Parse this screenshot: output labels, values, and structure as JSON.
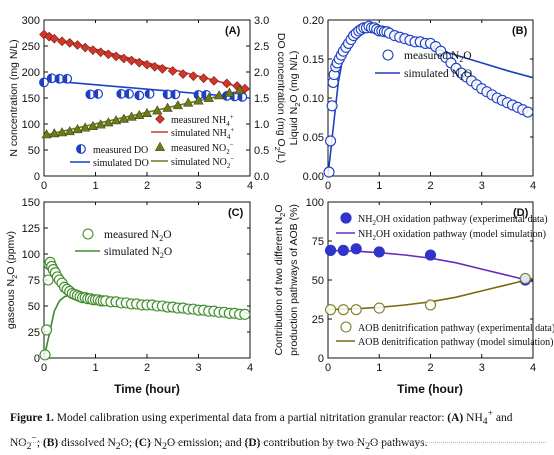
{
  "chart_data": [
    {
      "type": "scatter",
      "panel": "(A)",
      "xlabel": "",
      "ylabel": "N concentration (mg N/L)",
      "y2label": "DO concentration (mg O2/L)",
      "xlim": [
        0,
        4
      ],
      "ylim": [
        0,
        300
      ],
      "y2lim": [
        0,
        3.0
      ],
      "xticks": [
        "0",
        "1",
        "2",
        "3",
        "4"
      ],
      "yticks": [
        "0",
        "50",
        "100",
        "150",
        "200",
        "250",
        "300"
      ],
      "y2ticks": [
        "0.0",
        "0.5",
        "1.0",
        "1.5",
        "2.0",
        "2.5",
        "3.0"
      ],
      "legend_position": "bottom-right",
      "series": [
        {
          "name": "measured NH4+",
          "marker": "diamond",
          "color": "#d2362b",
          "axis": "left",
          "x": [
            0.0,
            0.1,
            0.2,
            0.35,
            0.5,
            0.65,
            0.8,
            0.95,
            1.1,
            1.25,
            1.4,
            1.55,
            1.7,
            1.85,
            2.0,
            2.15,
            2.3,
            2.5,
            2.7,
            2.9,
            3.1,
            3.3,
            3.55,
            3.75,
            3.9
          ],
          "y": [
            272,
            268,
            264,
            259,
            256,
            252,
            247,
            242,
            238,
            234,
            230,
            226,
            222,
            218,
            214,
            210,
            206,
            202,
            196,
            192,
            188,
            183,
            178,
            173,
            168
          ]
        },
        {
          "name": "simulated NH4+",
          "line": true,
          "color": "#d2362b",
          "axis": "left",
          "x": [
            0,
            4
          ],
          "y": [
            270,
            166
          ]
        },
        {
          "name": "measured DO",
          "marker": "half-circle",
          "color": "#1f3fc4",
          "axis": "right",
          "x": [
            0.0,
            0.15,
            0.3,
            0.45,
            0.9,
            1.05,
            1.5,
            1.65,
            1.85,
            2.05,
            2.4,
            2.55,
            3.0,
            3.15,
            3.55,
            3.7,
            3.85
          ],
          "y": [
            1.8,
            1.88,
            1.87,
            1.87,
            1.57,
            1.58,
            1.58,
            1.58,
            1.55,
            1.58,
            1.57,
            1.57,
            1.56,
            1.56,
            1.54,
            1.53,
            1.52
          ]
        },
        {
          "name": "simulated DO",
          "line": true,
          "color": "#1f3fc4",
          "axis": "right",
          "x": [
            0,
            4
          ],
          "y": [
            1.84,
            1.5
          ]
        },
        {
          "name": "measured NO2-",
          "marker": "triangle",
          "color": "#6d7a1c",
          "axis": "left",
          "x": [
            0.05,
            0.2,
            0.35,
            0.5,
            0.65,
            0.8,
            0.95,
            1.1,
            1.25,
            1.4,
            1.55,
            1.7,
            1.85,
            2.0,
            2.2,
            2.4,
            2.6,
            2.8,
            3.0,
            3.2,
            3.4,
            3.6,
            3.8
          ],
          "y": [
            80,
            82,
            84,
            86,
            90,
            93,
            96,
            99,
            103,
            107,
            110,
            114,
            117,
            121,
            126,
            131,
            136,
            141,
            145,
            150,
            155,
            160,
            165
          ]
        },
        {
          "name": "simulated NO2-",
          "line": true,
          "color": "#6d7a1c",
          "axis": "left",
          "x": [
            0,
            4
          ],
          "y": [
            78,
            167
          ]
        }
      ]
    },
    {
      "type": "scatter",
      "panel": "(B)",
      "xlabel": "",
      "ylabel": "Liquid N2O (mg N/L)",
      "xlim": [
        0,
        4
      ],
      "ylim": [
        0,
        0.2
      ],
      "xticks": [
        "0",
        "1",
        "2",
        "3",
        "4"
      ],
      "yticks": [
        "0.00",
        "0.05",
        "0.10",
        "0.15",
        "0.20"
      ],
      "legend_position": "top-right",
      "series": [
        {
          "name": "measured N2O",
          "marker": "open-circle",
          "color": "#1f3fc4",
          "x": [
            0.02,
            0.05,
            0.08,
            0.1,
            0.12,
            0.15,
            0.18,
            0.22,
            0.26,
            0.3,
            0.35,
            0.4,
            0.45,
            0.5,
            0.55,
            0.6,
            0.65,
            0.7,
            0.75,
            0.8,
            0.85,
            0.9,
            0.95,
            1.0,
            1.05,
            1.1,
            1.15,
            1.2,
            1.3,
            1.4,
            1.5,
            1.6,
            1.7,
            1.8,
            1.9,
            2.0,
            2.1,
            2.2,
            2.3,
            2.4,
            2.5,
            2.6,
            2.7,
            2.8,
            2.9,
            3.0,
            3.1,
            3.2,
            3.3,
            3.4,
            3.5,
            3.6,
            3.7,
            3.8,
            3.9
          ],
          "y": [
            0.005,
            0.045,
            0.09,
            0.12,
            0.13,
            0.14,
            0.145,
            0.15,
            0.155,
            0.16,
            0.165,
            0.17,
            0.175,
            0.18,
            0.183,
            0.186,
            0.188,
            0.19,
            0.19,
            0.192,
            0.19,
            0.19,
            0.188,
            0.186,
            0.186,
            0.185,
            0.185,
            0.183,
            0.18,
            0.178,
            0.176,
            0.174,
            0.172,
            0.172,
            0.17,
            0.17,
            0.166,
            0.16,
            0.152,
            0.145,
            0.138,
            0.132,
            0.127,
            0.122,
            0.117,
            0.112,
            0.108,
            0.104,
            0.1,
            0.097,
            0.094,
            0.091,
            0.088,
            0.085,
            0.082
          ]
        },
        {
          "name": "simulated N2O",
          "line": true,
          "color": "#1f3fc4",
          "x": [
            0.0,
            0.1,
            0.2,
            0.3,
            0.4,
            0.5,
            0.6,
            0.7,
            0.8,
            1.0,
            1.2,
            1.5,
            2.0,
            2.5,
            3.0,
            3.5,
            4.0
          ],
          "y": [
            0.0,
            0.06,
            0.12,
            0.155,
            0.175,
            0.185,
            0.19,
            0.191,
            0.19,
            0.186,
            0.182,
            0.175,
            0.165,
            0.155,
            0.145,
            0.135,
            0.126
          ]
        }
      ]
    },
    {
      "type": "scatter",
      "panel": "(C)",
      "xlabel": "Time (hour)",
      "ylabel": "gaseous N2O (ppmv)",
      "xlim": [
        0,
        4
      ],
      "ylim": [
        0,
        150
      ],
      "xticks": [
        "0",
        "1",
        "2",
        "3",
        "4"
      ],
      "yticks": [
        "0",
        "25",
        "50",
        "75",
        "100",
        "125",
        "150"
      ],
      "legend_position": "top-right",
      "series": [
        {
          "name": "measured N2O",
          "marker": "open-circle",
          "color": "#3f8a2a",
          "x": [
            0.02,
            0.05,
            0.08,
            0.1,
            0.12,
            0.15,
            0.18,
            0.22,
            0.26,
            0.3,
            0.35,
            0.4,
            0.45,
            0.5,
            0.55,
            0.6,
            0.65,
            0.7,
            0.75,
            0.8,
            0.85,
            0.9,
            0.95,
            1.0,
            1.05,
            1.1,
            1.15,
            1.2,
            1.3,
            1.4,
            1.5,
            1.6,
            1.7,
            1.8,
            1.9,
            2.0,
            2.1,
            2.2,
            2.3,
            2.4,
            2.5,
            2.6,
            2.7,
            2.8,
            2.9,
            3.0,
            3.1,
            3.2,
            3.3,
            3.4,
            3.5,
            3.6,
            3.7,
            3.8,
            3.9
          ],
          "y": [
            3,
            27,
            75,
            90,
            92,
            88,
            85,
            82,
            78,
            75,
            72,
            68,
            66,
            64,
            62,
            61,
            60,
            59,
            58,
            58,
            57,
            57,
            56,
            56,
            56,
            55,
            55,
            55,
            54,
            54,
            53,
            53,
            52,
            52,
            51,
            51,
            51,
            50,
            50,
            49,
            49,
            48,
            48,
            47,
            47,
            46,
            46,
            45,
            45,
            44,
            44,
            43,
            43,
            42,
            42
          ]
        },
        {
          "name": "simulated N2O",
          "line": true,
          "color": "#3f8a2a",
          "x": [
            0.0,
            0.1,
            0.2,
            0.3,
            0.4,
            0.5,
            0.6,
            0.7,
            0.8,
            1.0,
            1.5,
            2.0,
            2.5,
            3.0,
            3.5,
            4.0
          ],
          "y": [
            0,
            22,
            45,
            55,
            59,
            60.5,
            61,
            61,
            60.5,
            59,
            55,
            52,
            49,
            47,
            45,
            43
          ]
        }
      ]
    },
    {
      "type": "scatter",
      "panel": "(D)",
      "xlabel": "Time (hour)",
      "ylabel": "Contribution of two different N2O production pathways of AOB (%)",
      "xlim": [
        0,
        4
      ],
      "ylim": [
        0,
        100
      ],
      "xticks": [
        "0",
        "1",
        "2",
        "3",
        "4"
      ],
      "yticks": [
        "0",
        "25",
        "50",
        "75",
        "100"
      ],
      "series": [
        {
          "name": "NH2OH oxidation pathway (experimental data)",
          "marker": "filled-circle",
          "color": "#2f35c9",
          "x": [
            0.05,
            0.3,
            0.55,
            1.0,
            2.0,
            3.85
          ],
          "y": [
            69,
            69,
            70,
            68,
            66,
            50
          ]
        },
        {
          "name": "NH2OH oxidation pathway (model simulation)",
          "line": true,
          "color": "#6a2bbf",
          "x": [
            0,
            0.5,
            1.0,
            1.5,
            2.0,
            2.5,
            3.0,
            3.5,
            4.0
          ],
          "y": [
            69,
            68.5,
            67.5,
            66,
            64,
            61,
            57,
            53,
            49
          ]
        },
        {
          "name": "AOB denitrification pathway (experimental data)",
          "marker": "open-circle",
          "color": "#7a8226",
          "x": [
            0.05,
            0.3,
            0.55,
            1.0,
            2.0,
            3.85
          ],
          "y": [
            31,
            31,
            31,
            32,
            34,
            51
          ]
        },
        {
          "name": "AOB denitrification pathway (model simulation)",
          "line": true,
          "color": "#7a6a14",
          "x": [
            0,
            0.5,
            1.0,
            1.5,
            2.0,
            2.5,
            3.0,
            3.5,
            4.0
          ],
          "y": [
            31,
            31.5,
            32.5,
            34,
            36,
            39,
            43,
            47,
            51
          ]
        }
      ]
    }
  ],
  "legend_text": {
    "A": [
      "measured NH",
      "simulated NH",
      "measured DO",
      "simulated DO",
      "measured NO",
      "simulated NO"
    ],
    "B": [
      "measured N",
      "simulated N"
    ],
    "C": [
      "measured N",
      "simulated N"
    ],
    "D": [
      "NH",
      "OH oxidation pathway (experimental data)",
      "OH oxidation pathway (model simulation)",
      "AOB denitrification pathway (experimental data)",
      "AOB denitrification pathway (model simulation)"
    ]
  },
  "axis_text": {
    "a_left_a": "N concentration (mg N/L)",
    "a_right_1": "DO concentration (mg O",
    "a_right_2": "/L)",
    "b_left_1": "Liquid N",
    "b_left_2": "O (mg N/L)",
    "c_left_1": "gaseous N",
    "c_left_2": "O (ppmv)",
    "d_left_1": "Contribution of two different N",
    "d_left_2": "O",
    "d_left_3": "production pathways of AOB (%)",
    "time_c": "Time (hour)",
    "time_d": "Time (hour)"
  },
  "caption": {
    "fig": "Figure 1.",
    "text1": "  Model calibration using experimental data from a partial nitritation granular reactor: ",
    "a": "(A)",
    "nh": " NH",
    "nh_sup": "4",
    "and1": "+",
    "and1b": " and",
    "no": "NO",
    "no_sub": "2",
    "no_sup": "−",
    "semi1": "; ",
    "b": "(B)",
    "dis": " dissolved N",
    "sub2a": "2",
    "o1": "O; ",
    "c": "(C)",
    "emi": " N",
    "sub2b": "2",
    "o2": "O emission; and ",
    "d": "(D)",
    "contrib": " contribution by two N",
    "sub2c": "2",
    "o3": "O pathways."
  },
  "colors": {
    "nh4": "#d2362b",
    "do": "#1f3fc4",
    "no2": "#6d7a1c",
    "n2o_b": "#1f3fc4",
    "n2o_c": "#3f8a2a",
    "nh2oh_pts": "#2f35c9",
    "nh2oh_line": "#6a2bbf",
    "aob_pts": "#7a8226",
    "aob_line": "#7a6a14"
  }
}
